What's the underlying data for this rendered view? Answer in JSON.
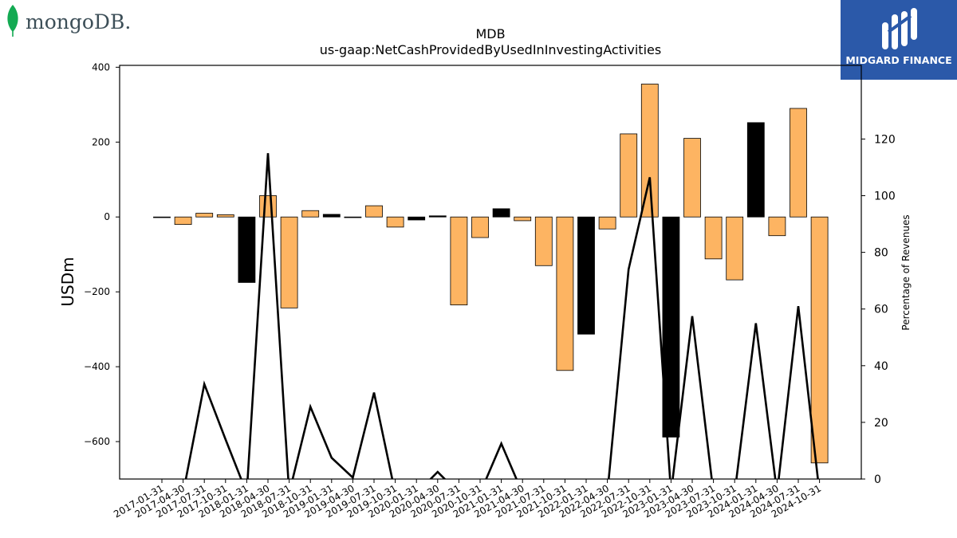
{
  "logos": {
    "left_text": "mongoDB.",
    "left_icon": "leaf-icon",
    "right_text": "MIDGARD FINANCE",
    "right_icon": "midgard-m-icon",
    "right_bg": "#2b59a9"
  },
  "chart_data": {
    "type": "bar",
    "title": "MDB",
    "subtitle": "us-gaap:NetCashProvidedByUsedInInvestingActivities",
    "ylabel": "USDm",
    "y2label": "Percentage of Revenues",
    "ylim": [
      -700,
      405
    ],
    "y2lim": [
      0,
      146
    ],
    "yticks": [
      -600,
      -400,
      -200,
      0,
      200,
      400
    ],
    "y2ticks": [
      0,
      20,
      40,
      60,
      80,
      100,
      120
    ],
    "categories": [
      "2017-01-31",
      "2017-04-30",
      "2017-07-31",
      "2017-10-31",
      "2018-01-31",
      "2018-04-30",
      "2018-07-31",
      "2018-10-31",
      "2019-01-31",
      "2019-04-30",
      "2019-07-31",
      "2019-10-31",
      "2020-01-31",
      "2020-04-30",
      "2020-07-31",
      "2020-10-31",
      "2021-01-31",
      "2021-04-30",
      "2021-07-31",
      "2021-10-31",
      "2022-01-31",
      "2022-04-30",
      "2022-07-31",
      "2022-10-31",
      "2023-01-31",
      "2023-04-30",
      "2023-07-31",
      "2023-10-31",
      "2024-01-31",
      "2024-04-30",
      "2024-07-31",
      "2024-10-31"
    ],
    "series": [
      {
        "type": "bar",
        "values": [
          -1,
          -20,
          10,
          6,
          -175,
          57,
          -243,
          17,
          7,
          -1,
          30,
          -27,
          -8,
          3,
          -235,
          -55,
          22,
          -10,
          -130,
          -410,
          -313,
          -32,
          222,
          355,
          -588,
          210,
          -112,
          -168,
          252,
          -50,
          290,
          -657
        ],
        "colors": [
          "#fdb462",
          "#fdb462",
          "#fdb462",
          "#fdb462",
          "#000000",
          "#fdb462",
          "#fdb462",
          "#fdb462",
          "#000000",
          "#fdb462",
          "#fdb462",
          "#fdb462",
          "#000000",
          "#000000",
          "#fdb462",
          "#fdb462",
          "#000000",
          "#fdb462",
          "#fdb462",
          "#fdb462",
          "#000000",
          "#fdb462",
          "#fdb462",
          "#fdb462",
          "#000000",
          "#fdb462",
          "#fdb462",
          "#fdb462",
          "#000000",
          "#fdb462",
          "#fdb462",
          "#fdb462"
        ]
      },
      {
        "type": "line",
        "axis": "right",
        "color": "#000000",
        "values": [
          -5,
          -5,
          33.5,
          14,
          -5,
          115,
          -5,
          25.5,
          7.5,
          0.5,
          30.5,
          -5,
          -5,
          2.5,
          -5,
          -5,
          12.5,
          -5,
          -5,
          -5,
          -5,
          -5,
          74,
          106.5,
          -5,
          57.5,
          -5,
          -5,
          55,
          -5,
          61,
          -5
        ]
      }
    ],
    "grid": false,
    "legend": "none"
  }
}
